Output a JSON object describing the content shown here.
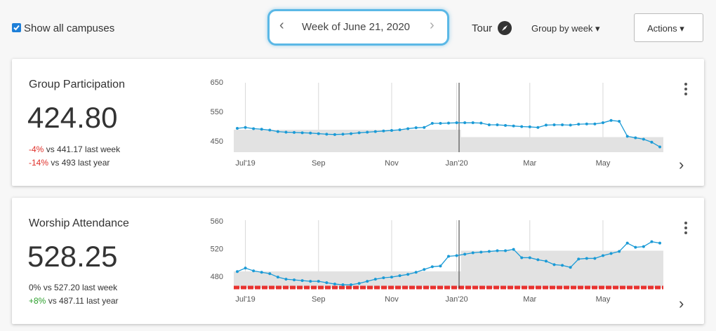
{
  "header": {
    "show_all_campuses": "Show all campuses",
    "week": "Week of June 21, 2020",
    "tour": "Tour",
    "group_by": "Group by week",
    "actions": "Actions"
  },
  "cards": [
    {
      "title": "Group Participation",
      "value": "424.80",
      "comparisons": [
        {
          "change": "-4%",
          "color": "#e0302a",
          "text": "vs 441.17 last week"
        },
        {
          "change": "-14%",
          "color": "#e0302a",
          "text": "vs 493 last year"
        }
      ]
    },
    {
      "title": "Worship Attendance",
      "value": "528.25",
      "comparisons": [
        {
          "change": "0%",
          "color": "#333333",
          "text": "vs 527.20 last week"
        },
        {
          "change": "+8%",
          "color": "#2ca02c",
          "text": "vs 487.11 last year"
        }
      ]
    }
  ],
  "chart_data": [
    {
      "type": "line",
      "categories": [
        null,
        "Jul'19",
        null,
        null,
        null,
        null,
        null,
        null,
        null,
        null,
        "Sep",
        null,
        null,
        null,
        null,
        null,
        null,
        null,
        null,
        "Nov",
        null,
        null,
        null,
        null,
        null,
        null,
        null,
        "Jan'20",
        null,
        null,
        null,
        null,
        null,
        null,
        null,
        null,
        "Mar",
        null,
        null,
        null,
        null,
        null,
        null,
        null,
        null,
        "May",
        null,
        null,
        null,
        null,
        null,
        null,
        null
      ],
      "ylim": [
        414,
        650
      ],
      "yticks": [
        450,
        550,
        650
      ],
      "grid": true,
      "series": [
        {
          "kind": "band",
          "color": "#e2e2e2",
          "values": [
            490,
            490,
            490,
            490,
            490,
            490,
            490,
            490,
            490,
            490,
            490,
            490,
            490,
            490,
            490,
            490,
            490,
            490,
            490,
            490,
            490,
            490,
            490,
            490,
            490,
            490,
            490,
            490,
            465,
            465,
            465,
            465,
            465,
            465,
            465,
            465,
            465,
            465,
            465,
            465,
            465,
            465,
            465,
            465,
            465,
            465,
            465,
            465,
            465,
            465,
            465,
            465,
            465
          ]
        },
        {
          "kind": "line",
          "color": "#1a9ad6",
          "values": [
            495,
            498,
            494,
            492,
            489,
            484,
            482,
            481,
            480,
            479,
            477,
            475,
            474,
            475,
            477,
            480,
            482,
            484,
            486,
            488,
            490,
            494,
            497,
            498,
            512,
            512,
            513,
            514,
            514,
            514,
            513,
            507,
            507,
            505,
            503,
            501,
            500,
            498,
            506,
            507,
            507,
            506,
            509,
            510,
            510,
            514,
            522,
            519,
            468,
            463,
            458,
            448,
            432
          ]
        }
      ]
    },
    {
      "type": "line",
      "categories": [
        null,
        "Jul'19",
        null,
        null,
        null,
        null,
        null,
        null,
        null,
        null,
        "Sep",
        null,
        null,
        null,
        null,
        null,
        null,
        null,
        null,
        "Nov",
        null,
        null,
        null,
        null,
        null,
        null,
        null,
        "Jan'20",
        null,
        null,
        null,
        null,
        null,
        null,
        null,
        null,
        "Mar",
        null,
        null,
        null,
        null,
        null,
        null,
        null,
        null,
        "May",
        null,
        null,
        null,
        null,
        null,
        null,
        null
      ],
      "ylim": [
        464,
        562
      ],
      "yticks": [
        480,
        520,
        560
      ],
      "grid": true,
      "reference_line": {
        "value": 465,
        "color": "#e8322f"
      },
      "series": [
        {
          "kind": "band",
          "color": "#e2e2e2",
          "values": [
            488,
            488,
            488,
            488,
            488,
            488,
            488,
            488,
            488,
            488,
            488,
            488,
            488,
            488,
            488,
            488,
            488,
            488,
            488,
            488,
            488,
            488,
            488,
            488,
            488,
            488,
            488,
            488,
            518,
            518,
            518,
            518,
            518,
            518,
            518,
            518,
            518,
            518,
            518,
            518,
            518,
            518,
            518,
            518,
            518,
            518,
            518,
            518,
            518,
            518,
            518,
            518,
            518
          ]
        },
        {
          "kind": "line",
          "color": "#1a9ad6",
          "values": [
            488,
            493,
            489,
            487,
            485,
            480,
            477,
            476,
            475,
            474,
            474,
            472,
            470,
            469,
            469,
            471,
            474,
            477,
            479,
            480,
            482,
            484,
            487,
            491,
            495,
            496,
            510,
            511,
            513,
            515,
            516,
            517,
            518,
            518,
            520,
            508,
            508,
            505,
            503,
            498,
            497,
            494,
            506,
            507,
            507,
            511,
            514,
            517,
            529,
            523,
            524,
            531,
            529
          ]
        }
      ]
    }
  ]
}
